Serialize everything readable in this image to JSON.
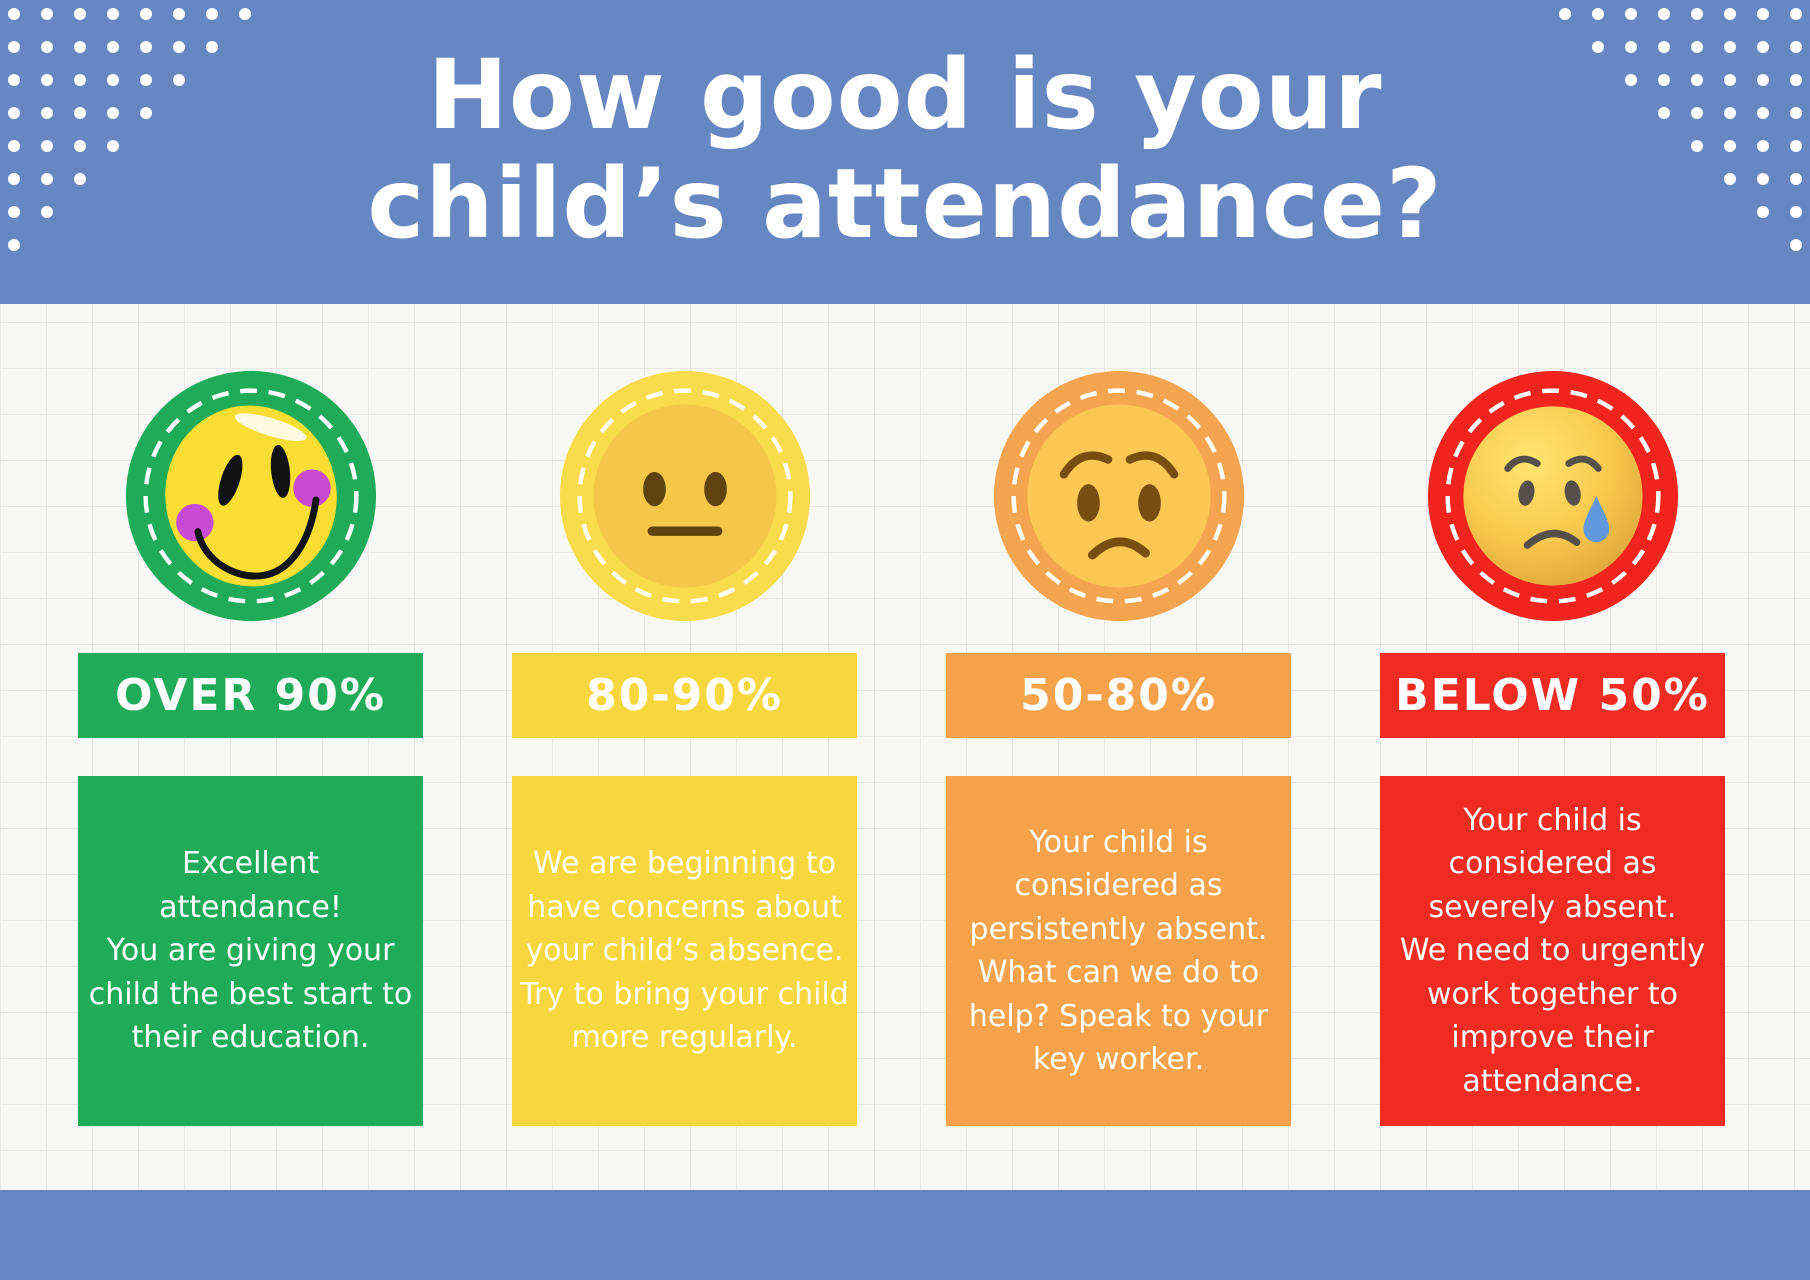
{
  "header": {
    "title_line1": "How good is your",
    "title_line2": "child’s attendance?",
    "background_color": "#6787c3"
  },
  "footer": {
    "background_color": "#6787c3"
  },
  "background": {
    "paper_color": "#f8f8f6",
    "grid_line_color": "#e7e7e4"
  },
  "columns": [
    {
      "label": "OVER 90%",
      "color": "#1fab58",
      "circle_color": "#1fab58",
      "emoji": "happy-face",
      "body": "Excellent attendance!\nYou are giving your child the best start to their education."
    },
    {
      "label": "80-90%",
      "color": "#f7d73e",
      "circle_color": "#f9dc4b",
      "emoji": "neutral-face",
      "body": "We are beginning to have concerns about your child’s absence.\nTry to bring your child more regularly."
    },
    {
      "label": "50-80%",
      "color": "#f5a24b",
      "circle_color": "#f5a54f",
      "emoji": "worried-face",
      "body": "Your child is considered as persistently absent.\nWhat can we do to help? Speak to your key worker."
    },
    {
      "label": "BELOW 50%",
      "color": "#f02b22",
      "circle_color": "#f2241e",
      "emoji": "sad-tear-face",
      "body": "Your child is considered as severely absent.\nWe need to urgently work together to improve their attendance."
    }
  ]
}
